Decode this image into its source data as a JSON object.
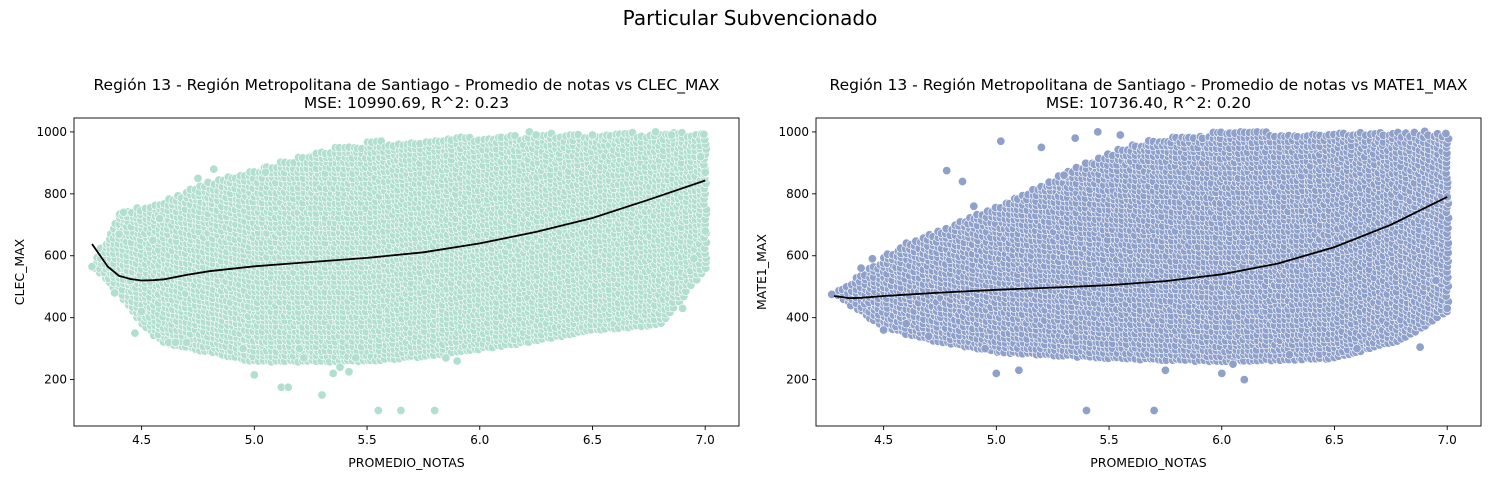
{
  "figure": {
    "suptitle": "Particular Subvencionado"
  },
  "chart_data": [
    {
      "type": "scatter",
      "title_line1": "Región 13 - Región Metropolitana de Santiago - Promedio de notas vs CLEC_MAX",
      "title_line2": "MSE: 10990.69, R^2: 0.23",
      "xlabel": "PROMEDIO_NOTAS",
      "ylabel": "CLEC_MAX",
      "xlim": [
        4.2,
        7.15
      ],
      "ylim": [
        50,
        1045
      ],
      "xticks": [
        4.5,
        5.0,
        5.5,
        6.0,
        6.5,
        7.0
      ],
      "xtick_labels": [
        "4.5",
        "5.0",
        "5.5",
        "6.0",
        "6.5",
        "7.0"
      ],
      "yticks": [
        200,
        400,
        600,
        800,
        1000
      ],
      "ytick_labels": [
        "200",
        "400",
        "600",
        "800",
        "1000"
      ],
      "point_color": "#b2dfd0",
      "line_color": "#000000",
      "band": {
        "upper": [
          [
            4.3,
            600
          ],
          [
            4.4,
            740
          ],
          [
            4.6,
            780
          ],
          [
            4.8,
            840
          ],
          [
            5.0,
            880
          ],
          [
            5.2,
            920
          ],
          [
            5.4,
            960
          ],
          [
            5.6,
            970
          ],
          [
            5.8,
            980
          ],
          [
            6.0,
            985
          ],
          [
            6.2,
            990
          ],
          [
            6.5,
            995
          ],
          [
            7.0,
            1000
          ]
        ],
        "lower": [
          [
            4.3,
            560
          ],
          [
            4.4,
            480
          ],
          [
            4.5,
            380
          ],
          [
            4.6,
            320
          ],
          [
            5.0,
            260
          ],
          [
            5.5,
            260
          ],
          [
            5.8,
            280
          ],
          [
            6.0,
            300
          ],
          [
            6.2,
            320
          ],
          [
            6.5,
            360
          ],
          [
            6.8,
            380
          ],
          [
            7.0,
            560
          ]
        ]
      },
      "points": [
        [
          4.28,
          565
        ],
        [
          4.38,
          480
        ],
        [
          4.4,
          670
        ],
        [
          4.42,
          740
        ],
        [
          4.45,
          520
        ],
        [
          4.47,
          350
        ],
        [
          4.5,
          420
        ],
        [
          4.55,
          650
        ],
        [
          4.58,
          720
        ],
        [
          4.62,
          320
        ],
        [
          4.65,
          320
        ],
        [
          4.7,
          320
        ],
        [
          4.75,
          850
        ],
        [
          4.82,
          880
        ],
        [
          4.95,
          300
        ],
        [
          5.0,
          215
        ],
        [
          5.05,
          870
        ],
        [
          5.12,
          175
        ],
        [
          5.15,
          175
        ],
        [
          5.2,
          300
        ],
        [
          5.22,
          270
        ],
        [
          5.3,
          150
        ],
        [
          5.35,
          220
        ],
        [
          5.38,
          240
        ],
        [
          5.42,
          225
        ],
        [
          5.45,
          270
        ],
        [
          5.55,
          100
        ],
        [
          5.65,
          100
        ],
        [
          5.8,
          100
        ],
        [
          5.85,
          270
        ],
        [
          5.9,
          260
        ],
        [
          6.22,
          1000
        ],
        [
          6.25,
          990
        ],
        [
          6.5,
          990
        ],
        [
          6.78,
          1000
        ],
        [
          6.85,
          990
        ],
        [
          6.9,
          430
        ],
        [
          6.95,
          590
        ],
        [
          6.98,
          920
        ],
        [
          7.0,
          870
        ],
        [
          7.0,
          680
        ]
      ],
      "fit": [
        [
          4.28,
          638
        ],
        [
          4.35,
          565
        ],
        [
          4.4,
          535
        ],
        [
          4.45,
          525
        ],
        [
          4.5,
          520
        ],
        [
          4.55,
          521
        ],
        [
          4.6,
          524
        ],
        [
          4.7,
          538
        ],
        [
          4.8,
          550
        ],
        [
          5.0,
          566
        ],
        [
          5.2,
          577
        ],
        [
          5.5,
          593
        ],
        [
          5.75,
          611
        ],
        [
          6.0,
          640
        ],
        [
          6.25,
          677
        ],
        [
          6.5,
          722
        ],
        [
          6.75,
          781
        ],
        [
          7.0,
          843
        ]
      ]
    },
    {
      "type": "scatter",
      "title_line1": "Región 13 - Región Metropolitana de Santiago - Promedio de notas vs MATE1_MAX",
      "title_line2": "MSE: 10736.40, R^2: 0.20",
      "xlabel": "PROMEDIO_NOTAS",
      "ylabel": "MATE1_MAX",
      "xlim": [
        4.2,
        7.15
      ],
      "ylim": [
        50,
        1045
      ],
      "xticks": [
        4.5,
        5.0,
        5.5,
        6.0,
        6.5,
        7.0
      ],
      "xtick_labels": [
        "4.5",
        "5.0",
        "5.5",
        "6.0",
        "6.5",
        "7.0"
      ],
      "yticks": [
        200,
        400,
        600,
        800,
        1000
      ],
      "ytick_labels": [
        "200",
        "400",
        "600",
        "800",
        "1000"
      ],
      "point_color": "#8fa0cb",
      "line_color": "#000000",
      "band": {
        "upper": [
          [
            4.3,
            490
          ],
          [
            4.4,
            540
          ],
          [
            4.5,
            600
          ],
          [
            4.6,
            640
          ],
          [
            4.8,
            700
          ],
          [
            5.0,
            760
          ],
          [
            5.2,
            830
          ],
          [
            5.4,
            900
          ],
          [
            5.6,
            960
          ],
          [
            5.8,
            990
          ],
          [
            6.0,
            1000
          ],
          [
            7.0,
            1000
          ]
        ],
        "lower": [
          [
            4.3,
            470
          ],
          [
            4.4,
            420
          ],
          [
            4.5,
            370
          ],
          [
            4.7,
            330
          ],
          [
            5.0,
            290
          ],
          [
            5.5,
            270
          ],
          [
            6.0,
            260
          ],
          [
            6.5,
            270
          ],
          [
            6.8,
            330
          ],
          [
            7.0,
            420
          ]
        ]
      },
      "points": [
        [
          4.27,
          475
        ],
        [
          4.4,
          560
        ],
        [
          4.45,
          590
        ],
        [
          4.5,
          360
        ],
        [
          4.6,
          380
        ],
        [
          4.7,
          340
        ],
        [
          4.78,
          875
        ],
        [
          4.85,
          840
        ],
        [
          4.9,
          760
        ],
        [
          4.95,
          300
        ],
        [
          5.0,
          220
        ],
        [
          5.02,
          970
        ],
        [
          5.1,
          230
        ],
        [
          5.2,
          950
        ],
        [
          5.3,
          860
        ],
        [
          5.35,
          980
        ],
        [
          5.4,
          100
        ],
        [
          5.45,
          1000
        ],
        [
          5.55,
          990
        ],
        [
          5.7,
          100
        ],
        [
          5.75,
          230
        ],
        [
          6.0,
          220
        ],
        [
          6.05,
          250
        ],
        [
          6.1,
          200
        ],
        [
          6.3,
          280
        ],
        [
          6.6,
          300
        ],
        [
          6.88,
          305
        ],
        [
          6.95,
          520
        ],
        [
          7.0,
          430
        ],
        [
          7.0,
          790
        ]
      ],
      "fit": [
        [
          4.28,
          470
        ],
        [
          4.35,
          463
        ],
        [
          4.4,
          464
        ],
        [
          4.5,
          470
        ],
        [
          4.75,
          481
        ],
        [
          5.0,
          490
        ],
        [
          5.25,
          497
        ],
        [
          5.5,
          505
        ],
        [
          5.75,
          518
        ],
        [
          6.0,
          540
        ],
        [
          6.25,
          575
        ],
        [
          6.5,
          628
        ],
        [
          6.75,
          700
        ],
        [
          7.0,
          790
        ]
      ]
    }
  ]
}
